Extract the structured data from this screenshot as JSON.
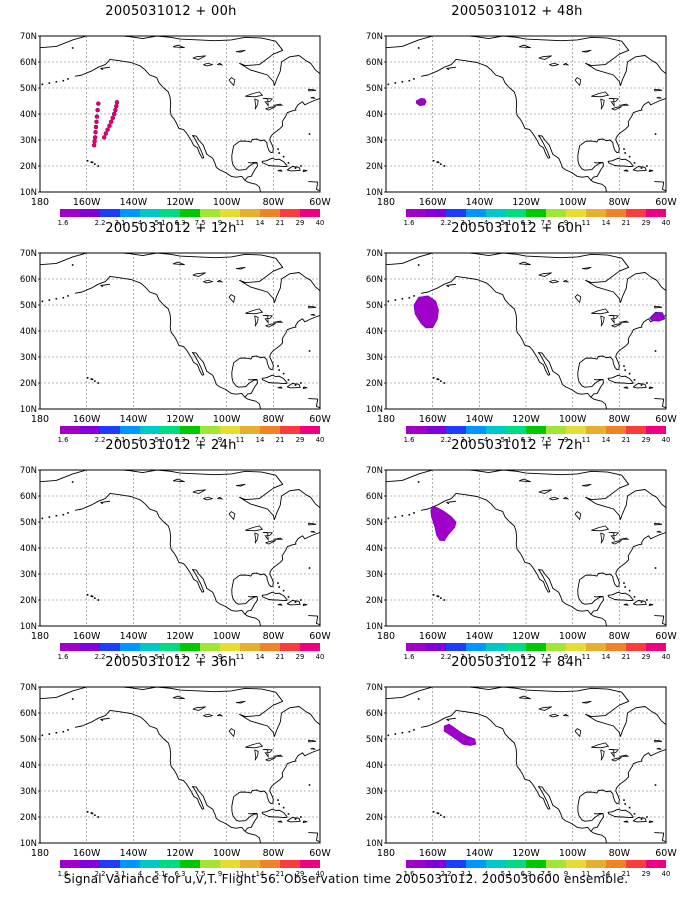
{
  "panels": [
    {
      "title": "2005031012 + 00h",
      "blob": "track"
    },
    {
      "title": "2005031012 + 48h",
      "blob": "small"
    },
    {
      "title": "2005031012 + 12h",
      "blob": "none"
    },
    {
      "title": "2005031012 + 60h",
      "blob": "pair"
    },
    {
      "title": "2005031012 + 24h",
      "blob": "none"
    },
    {
      "title": "2005031012 + 72h",
      "blob": "large"
    },
    {
      "title": "2005031012 + 36h",
      "blob": "none"
    },
    {
      "title": "2005031012 + 84h",
      "blob": "medium"
    }
  ],
  "lat_labels": [
    "70N",
    "60N",
    "50N",
    "40N",
    "30N",
    "20N",
    "10N"
  ],
  "lon_labels": [
    "180",
    "160W",
    "140W",
    "120W",
    "100W",
    "80W",
    "60W"
  ],
  "colorbar": {
    "labels": [
      "1.6",
      "2.2",
      "3.1",
      "4",
      "5.1",
      "6.3",
      "7.5",
      "9",
      "11",
      "14",
      "21",
      "29",
      "40"
    ],
    "colors": [
      "#a000c8",
      "#8200dc",
      "#1e3cff",
      "#0096ff",
      "#00c8c8",
      "#00dc82",
      "#00c800",
      "#a0e632",
      "#e6dc32",
      "#e6af2d",
      "#f08228",
      "#fa3c3c",
      "#f00080"
    ]
  },
  "footer": "Signal Variance for u,v,T. Flight 56. Observation time 2005031012. 2005030600 ensemble."
}
